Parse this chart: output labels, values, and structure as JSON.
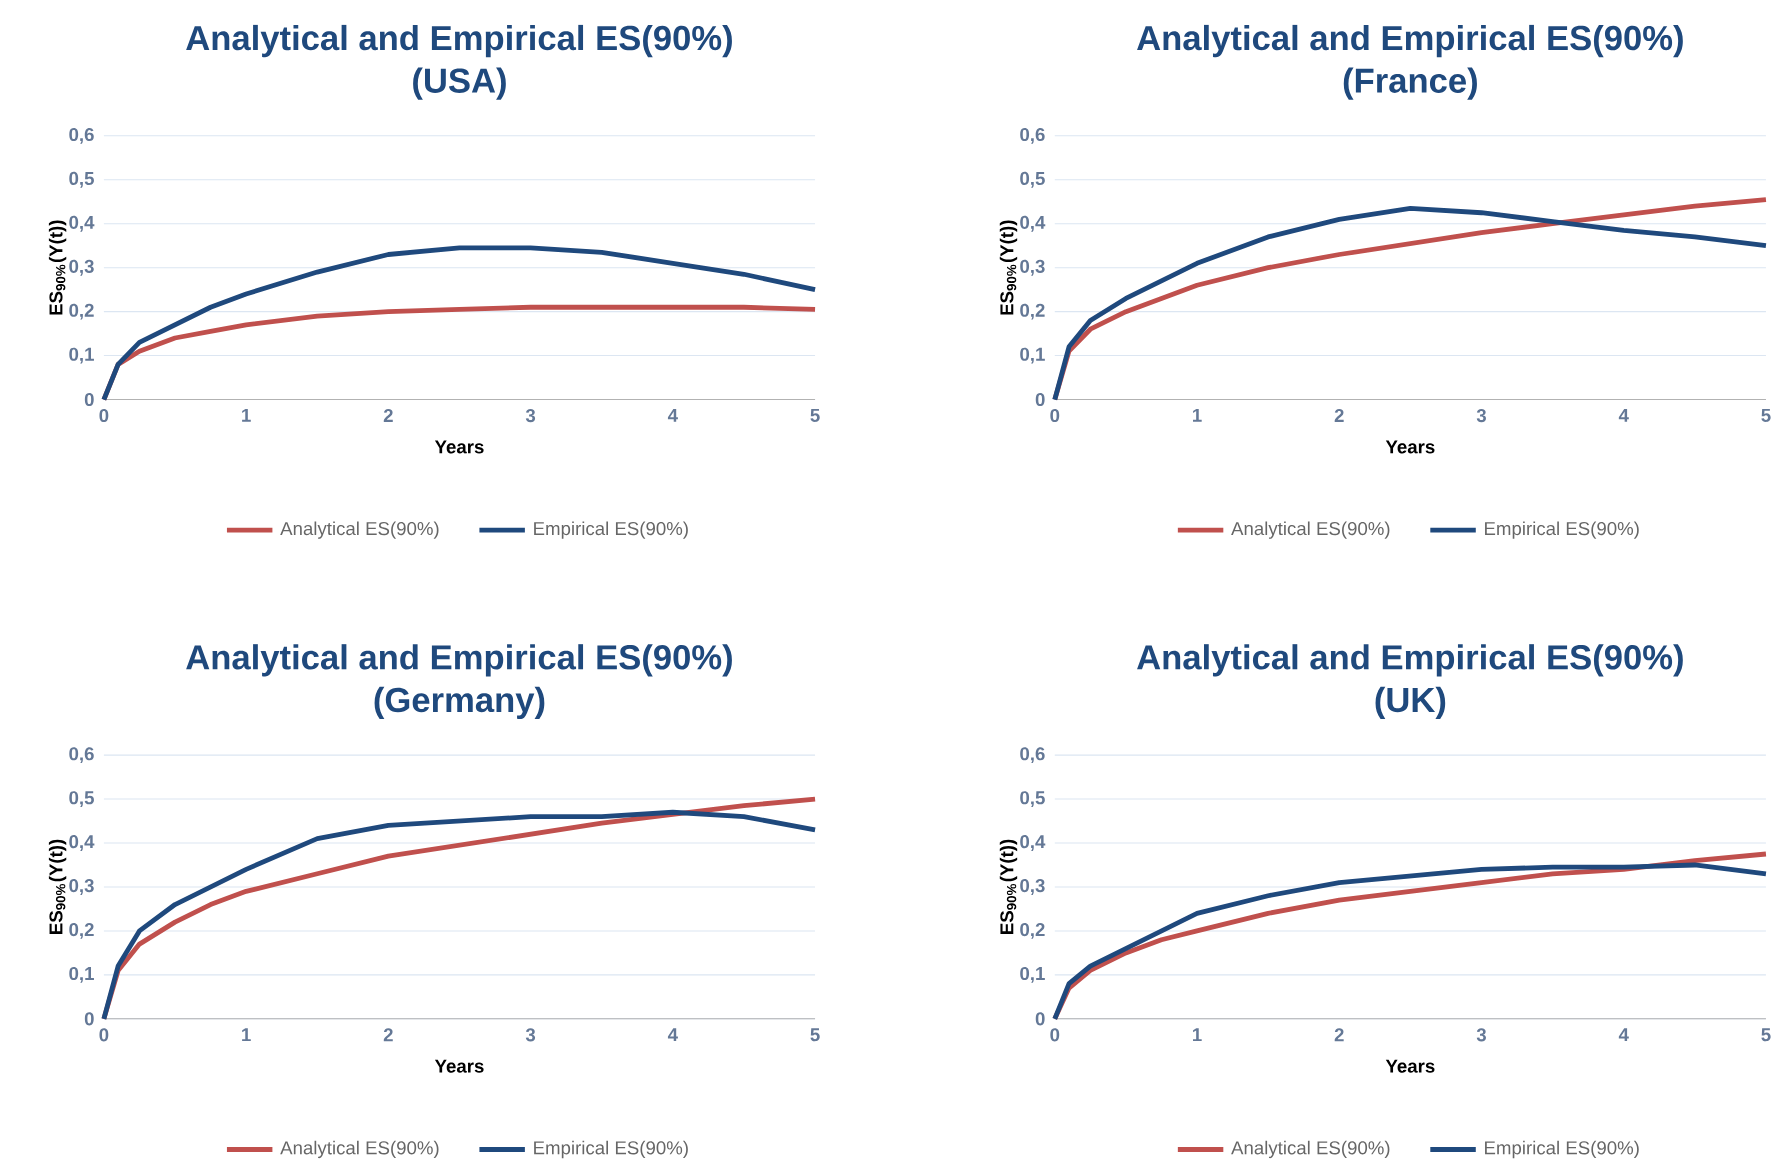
{
  "chart_data": [
    {
      "type": "line",
      "title": "Analytical and Empirical ES(90%)",
      "subtitle": "(USA)",
      "xlabel": "Years",
      "ylabel": "ES$_{90%}$(Y(t))",
      "grid": "y",
      "legend": "bottom",
      "xlim": [
        0,
        5
      ],
      "ylim": [
        0,
        0.6
      ],
      "xticks": [
        0,
        1,
        2,
        3,
        4,
        5
      ],
      "yticks": [
        0,
        {
          "value": 0.1,
          "label": "0,1"
        },
        {
          "value": 0.2,
          "label": "0,2"
        },
        {
          "value": 0.3,
          "label": "0,3"
        },
        {
          "value": 0.4,
          "label": "0,4"
        },
        {
          "value": 0.5,
          "label": "0,5"
        },
        {
          "value": 0.6,
          "label": "0,6"
        }
      ],
      "x": [
        0,
        0.1,
        0.25,
        0.5,
        0.75,
        1,
        1.5,
        2,
        2.5,
        3,
        3.5,
        4,
        4.5,
        5
      ],
      "series": [
        {
          "name": "Analytical ES(90%)",
          "color": "#c0504d",
          "values": [
            0,
            0.08,
            0.11,
            0.14,
            0.155,
            0.17,
            0.19,
            0.2,
            0.205,
            0.21,
            0.21,
            0.21,
            0.21,
            0.205
          ]
        },
        {
          "name": "Empirical ES(90%)",
          "color": "#1f497d",
          "values": [
            0,
            0.08,
            0.13,
            0.17,
            0.21,
            0.24,
            0.29,
            0.33,
            0.345,
            0.345,
            0.335,
            0.31,
            0.285,
            0.25
          ]
        }
      ]
    },
    {
      "type": "line",
      "title": "Analytical and Empirical ES(90%)",
      "subtitle": "(France)",
      "xlabel": "Years",
      "ylabel": "ES$_{90%}$(Y(t))",
      "grid": "y",
      "legend": "bottom",
      "xlim": [
        0,
        5
      ],
      "ylim": [
        0,
        0.6
      ],
      "xticks": [
        0,
        1,
        2,
        3,
        4,
        5
      ],
      "yticks": [
        0,
        {
          "value": 0.1,
          "label": "0,1"
        },
        {
          "value": 0.2,
          "label": "0,2"
        },
        {
          "value": 0.3,
          "label": "0,3"
        },
        {
          "value": 0.4,
          "label": "0,4"
        },
        {
          "value": 0.5,
          "label": "0,5"
        },
        {
          "value": 0.6,
          "label": "0,6"
        }
      ],
      "x": [
        0,
        0.1,
        0.25,
        0.5,
        0.75,
        1,
        1.5,
        2,
        2.5,
        3,
        3.5,
        4,
        4.5,
        5
      ],
      "series": [
        {
          "name": "Analytical ES(90%)",
          "color": "#c0504d",
          "values": [
            0,
            0.11,
            0.16,
            0.2,
            0.23,
            0.26,
            0.3,
            0.33,
            0.355,
            0.38,
            0.4,
            0.42,
            0.44,
            0.455
          ]
        },
        {
          "name": "Empirical ES(90%)",
          "color": "#1f497d",
          "values": [
            0,
            0.12,
            0.18,
            0.23,
            0.27,
            0.31,
            0.37,
            0.41,
            0.435,
            0.425,
            0.405,
            0.385,
            0.37,
            0.35
          ]
        }
      ]
    },
    {
      "type": "line",
      "title": "Analytical and Empirical ES(90%)",
      "subtitle": "(Germany)",
      "xlabel": "Years",
      "ylabel": "ES$_{90%}$(Y(t))",
      "grid": "y",
      "legend": "bottom",
      "xlim": [
        0,
        5
      ],
      "ylim": [
        0,
        0.6
      ],
      "xticks": [
        0,
        1,
        2,
        3,
        4,
        5
      ],
      "yticks": [
        0,
        {
          "value": 0.1,
          "label": "0,1"
        },
        {
          "value": 0.2,
          "label": "0,2"
        },
        {
          "value": 0.3,
          "label": "0,3"
        },
        {
          "value": 0.4,
          "label": "0,4"
        },
        {
          "value": 0.5,
          "label": "0,5"
        },
        {
          "value": 0.6,
          "label": "0,6"
        }
      ],
      "x": [
        0,
        0.1,
        0.25,
        0.5,
        0.75,
        1,
        1.5,
        2,
        2.5,
        3,
        3.5,
        4,
        4.5,
        5
      ],
      "series": [
        {
          "name": "Analytical ES(90%)",
          "color": "#c0504d",
          "values": [
            0,
            0.11,
            0.17,
            0.22,
            0.26,
            0.29,
            0.33,
            0.37,
            0.395,
            0.42,
            0.445,
            0.465,
            0.485,
            0.5
          ]
        },
        {
          "name": "Empirical ES(90%)",
          "color": "#1f497d",
          "values": [
            0,
            0.12,
            0.2,
            0.26,
            0.3,
            0.34,
            0.41,
            0.44,
            0.45,
            0.46,
            0.46,
            0.47,
            0.46,
            0.43
          ]
        }
      ]
    },
    {
      "type": "line",
      "title": "Analytical and Empirical ES(90%)",
      "subtitle": "(UK)",
      "xlabel": "Years",
      "ylabel": "ES$_{90%}$(Y(t))",
      "grid": "y",
      "legend": "bottom",
      "xlim": [
        0,
        5
      ],
      "ylim": [
        0,
        0.6
      ],
      "xticks": [
        0,
        1,
        2,
        3,
        4,
        5
      ],
      "yticks": [
        0,
        {
          "value": 0.1,
          "label": "0,1"
        },
        {
          "value": 0.2,
          "label": "0,2"
        },
        {
          "value": 0.3,
          "label": "0,3"
        },
        {
          "value": 0.4,
          "label": "0,4"
        },
        {
          "value": 0.5,
          "label": "0,5"
        },
        {
          "value": 0.6,
          "label": "0,6"
        }
      ],
      "x": [
        0,
        0.1,
        0.25,
        0.5,
        0.75,
        1,
        1.5,
        2,
        2.5,
        3,
        3.5,
        4,
        4.5,
        5
      ],
      "series": [
        {
          "name": "Analytical ES(90%)",
          "color": "#c0504d",
          "values": [
            0,
            0.07,
            0.11,
            0.15,
            0.18,
            0.2,
            0.24,
            0.27,
            0.29,
            0.31,
            0.33,
            0.34,
            0.36,
            0.375
          ]
        },
        {
          "name": "Empirical ES(90%)",
          "color": "#1f497d",
          "values": [
            0,
            0.08,
            0.12,
            0.16,
            0.2,
            0.24,
            0.28,
            0.31,
            0.325,
            0.34,
            0.345,
            0.345,
            0.35,
            0.33
          ]
        }
      ]
    }
  ]
}
